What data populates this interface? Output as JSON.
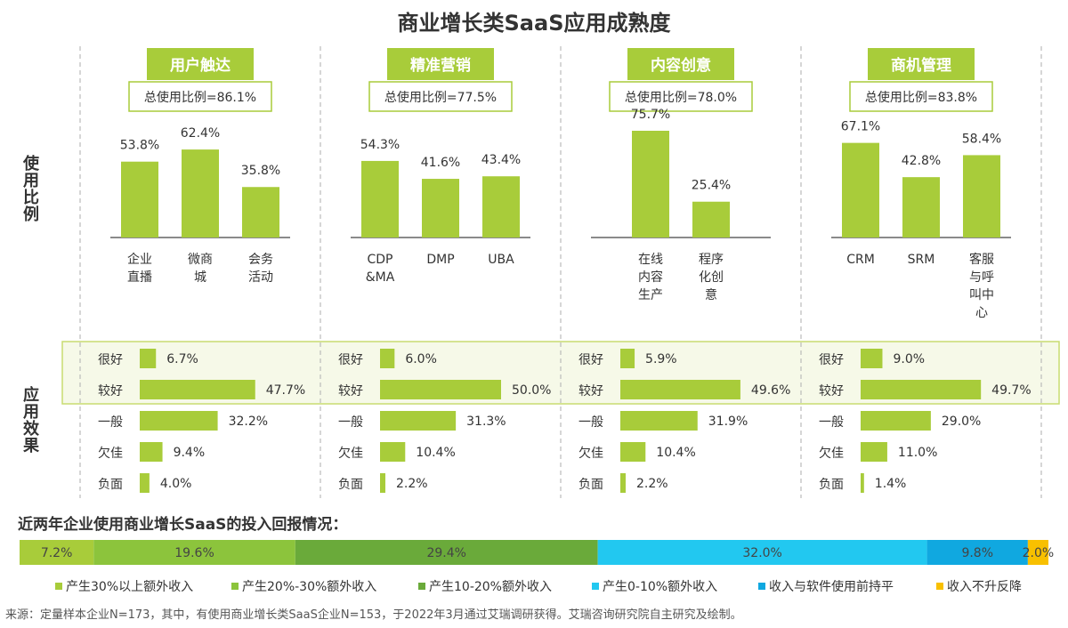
{
  "title": "商业增长类SaaS应用成熟度",
  "colors": {
    "green": "#a8cc3a",
    "highlight_border": "#c8dc70",
    "highlight_fill": "#f6f9e8",
    "divider": "#bbbbbb"
  },
  "row_labels": {
    "usage": "使用比例",
    "effect": "应用效果"
  },
  "chart_data": [
    {
      "type": "bar",
      "category": "用户触达",
      "total": "总使用比例=86.1%",
      "categories": [
        "企业\n直播",
        "微商\n城",
        "会务\n活动"
      ],
      "values": [
        53.8,
        62.4,
        35.8
      ],
      "value_labels": [
        "53.8%",
        "62.4%",
        "35.8%"
      ],
      "ylim": [
        0,
        100
      ]
    },
    {
      "type": "bar",
      "category": "精准营销",
      "total": "总使用比例=77.5%",
      "categories": [
        "CDP\n&MA",
        "DMP",
        "UBA"
      ],
      "values": [
        54.3,
        41.6,
        43.4
      ],
      "value_labels": [
        "54.3%",
        "41.6%",
        "43.4%"
      ],
      "ylim": [
        0,
        100
      ]
    },
    {
      "type": "bar",
      "category": "内容创意",
      "total": "总使用比例=78.0%",
      "categories": [
        "在线\n内容\n生产",
        "程序\n化创\n意"
      ],
      "values": [
        75.7,
        25.4
      ],
      "value_labels": [
        "75.7%",
        "25.4%"
      ],
      "ylim": [
        0,
        100
      ]
    },
    {
      "type": "bar",
      "category": "商机管理",
      "total": "总使用比例=83.8%",
      "categories": [
        "CRM",
        "SRM",
        "客服\n与呼\n叫中\n心"
      ],
      "values": [
        67.1,
        42.8,
        58.4
      ],
      "value_labels": [
        "67.1%",
        "42.8%",
        "58.4%"
      ],
      "ylim": [
        0,
        100
      ]
    },
    {
      "type": "bar",
      "orientation": "horizontal",
      "group": "用户触达",
      "categories": [
        "很好",
        "较好",
        "一般",
        "欠佳",
        "负面"
      ],
      "values": [
        6.7,
        47.7,
        32.2,
        9.4,
        4.0
      ],
      "value_labels": [
        "6.7%",
        "47.7%",
        "32.2%",
        "9.4%",
        "4.0%"
      ]
    },
    {
      "type": "bar",
      "orientation": "horizontal",
      "group": "精准营销",
      "categories": [
        "很好",
        "较好",
        "一般",
        "欠佳",
        "负面"
      ],
      "values": [
        6.0,
        50.0,
        31.3,
        10.4,
        2.2
      ],
      "value_labels": [
        "6.0%",
        "50.0%",
        "31.3%",
        "10.4%",
        "2.2%"
      ]
    },
    {
      "type": "bar",
      "orientation": "horizontal",
      "group": "内容创意",
      "categories": [
        "很好",
        "较好",
        "一般",
        "欠佳",
        "负面"
      ],
      "values": [
        5.9,
        49.6,
        31.9,
        10.4,
        2.2
      ],
      "value_labels": [
        "5.9%",
        "49.6%",
        "31.9%",
        "10.4%",
        "2.2%"
      ]
    },
    {
      "type": "bar",
      "orientation": "horizontal",
      "group": "商机管理",
      "categories": [
        "很好",
        "较好",
        "一般",
        "欠佳",
        "负面"
      ],
      "values": [
        9.0,
        49.7,
        29.0,
        11.0,
        1.4
      ],
      "value_labels": [
        "9.0%",
        "49.7%",
        "29.0%",
        "11.0%",
        "1.4%"
      ]
    },
    {
      "type": "bar",
      "stacked": true,
      "title": "近两年企业使用商业增长SaaS的投入回报情况：",
      "series": [
        {
          "name": "产生30%以上额外收入",
          "value": 7.2,
          "label": "7.2%",
          "color": "#a8cc3a"
        },
        {
          "name": "产生20%-30%额外收入",
          "value": 19.6,
          "label": "19.6%",
          "color": "#8cc43c"
        },
        {
          "name": "产生10-20%额外收入",
          "value": 29.4,
          "label": "29.4%",
          "color": "#6aaa3a"
        },
        {
          "name": "产生0-10%额外收入",
          "value": 32.0,
          "label": "32.0%",
          "color": "#22c8f0"
        },
        {
          "name": "收入与软件使用前持平",
          "value": 9.8,
          "label": "9.8%",
          "color": "#10a8e0"
        },
        {
          "name": "收入不升反降",
          "value": 2.0,
          "label": "2.0%",
          "color": "#f8c000"
        }
      ],
      "legend": "bottom"
    }
  ],
  "source": "来源：定量样本企业N=173，其中，有使用商业增长类SaaS企业N=153，于2022年3月通过艾瑞调研获得。艾瑞咨询研究院自主研究及绘制。"
}
